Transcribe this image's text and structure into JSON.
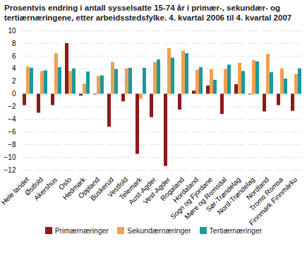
{
  "chart_data": {
    "type": "bar",
    "title": "Prosentvis endring i antall sysselsatte 15-74 år i primær-, sekundær- og tertiærnæringene, etter arbeidsstedsfylke. 4. kvartal 2006 til 4. kvartal 2007",
    "categories": [
      "Hele landet",
      "Østfold",
      "Akershus",
      "Oslo",
      "Hedmark",
      "Oppland",
      "Buskerud",
      "Vestfold",
      "Telemark",
      "Aust-Agder",
      "Vest-Agder",
      "Rogaland",
      "Hordaland",
      "Sogn og Fjordane",
      "Møre og Romsdal",
      "Sør-Trøndelag",
      "Nord-Trøndelag",
      "Nordland",
      "Troms Romsa",
      "Finnmark Finnmárku"
    ],
    "series": [
      {
        "name": "Primærnæringer",
        "color": "#8b1a1a",
        "values": [
          -1.8,
          -3.0,
          -1.8,
          8.0,
          -0.3,
          -0.1,
          -5.2,
          -1.2,
          -9.5,
          -3.7,
          -11.4,
          -2.5,
          0.5,
          1.3,
          -3.2,
          1.5,
          -0.1,
          -2.8,
          -1.8,
          -2.7
        ]
      },
      {
        "name": "Sekundærnæringer",
        "color": "#f0a050",
        "values": [
          4.3,
          3.6,
          6.4,
          3.6,
          1.6,
          2.8,
          5.0,
          4.0,
          -0.8,
          5.0,
          7.2,
          6.8,
          3.8,
          3.9,
          3.9,
          4.9,
          5.3,
          6.3,
          4.0,
          3.1
        ]
      },
      {
        "name": "Tertiærnæringer",
        "color": "#1a9a9a",
        "values": [
          4.1,
          3.7,
          4.2,
          4.0,
          3.5,
          2.9,
          3.9,
          4.1,
          4.1,
          5.4,
          5.7,
          6.4,
          4.2,
          2.2,
          4.6,
          3.6,
          5.1,
          3.4,
          2.4,
          4.0
        ]
      }
    ],
    "ylim": [
      -12,
      10
    ],
    "yticks": [
      -12,
      -10,
      -8,
      -6,
      -4,
      -2,
      0,
      2,
      4,
      6,
      8,
      10
    ],
    "grid": true,
    "legend": "bottom"
  }
}
